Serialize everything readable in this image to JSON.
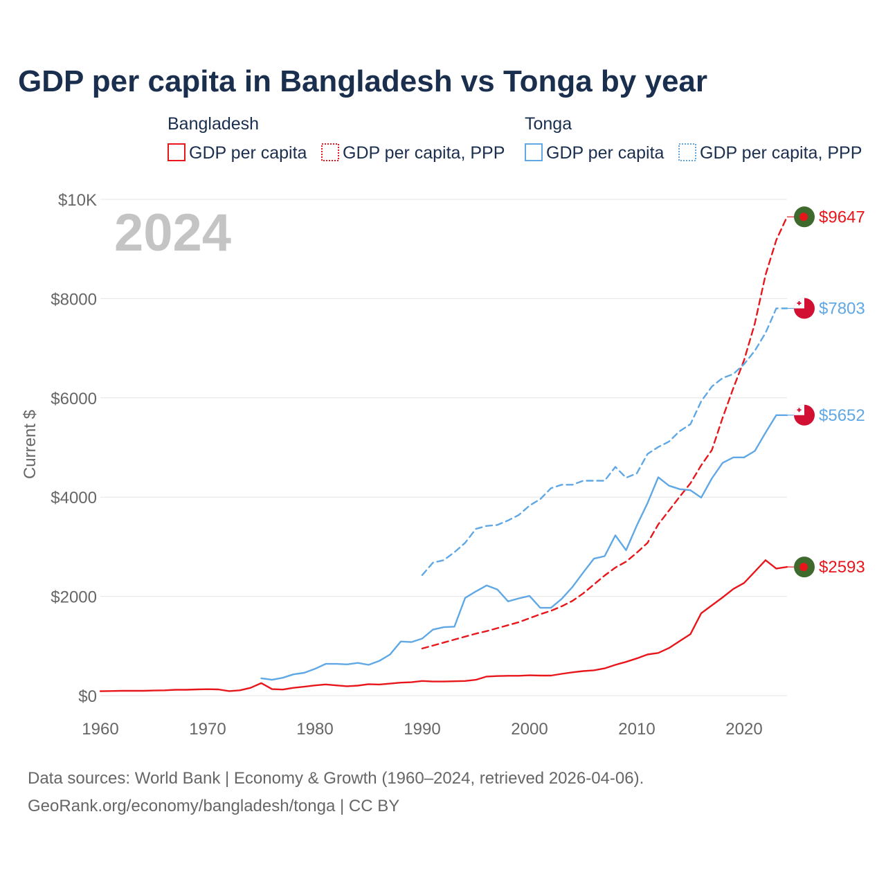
{
  "chart_data": {
    "type": "line",
    "title": "GDP per capita in Bangladesh vs Tonga by year",
    "ylabel": "Current $",
    "xlim": [
      1960,
      2024
    ],
    "ylim": [
      0,
      10000
    ],
    "year_label": "2024",
    "x_ticks": [
      1960,
      1970,
      1980,
      1990,
      2000,
      2010,
      2020
    ],
    "x_tick_labels": [
      "1960",
      "1970",
      "1980",
      "1990",
      "2000",
      "2010",
      "2020"
    ],
    "y_ticks": [
      0,
      2000,
      4000,
      6000,
      8000,
      10000
    ],
    "y_tick_labels": [
      "$0",
      "$2000",
      "$4000",
      "$6000",
      "$8000",
      "$10K"
    ],
    "legend": {
      "groups": [
        {
          "name": "Bangladesh",
          "items": [
            "GDP per capita",
            "GDP per capita, PPP"
          ]
        },
        {
          "name": "Tonga",
          "items": [
            "GDP per capita",
            "GDP per capita, PPP"
          ]
        }
      ]
    },
    "series": [
      {
        "name": "Bangladesh GDP per capita",
        "country": "Bangladesh",
        "color": "#e8161b",
        "dash": "solid",
        "end_label": "$2593",
        "x": [
          1960,
          1961,
          1962,
          1963,
          1964,
          1965,
          1966,
          1967,
          1968,
          1969,
          1970,
          1971,
          1972,
          1973,
          1974,
          1975,
          1976,
          1977,
          1978,
          1979,
          1980,
          1981,
          1982,
          1983,
          1984,
          1985,
          1986,
          1987,
          1988,
          1989,
          1990,
          1991,
          1992,
          1993,
          1994,
          1995,
          1996,
          1997,
          1998,
          1999,
          2000,
          2001,
          2002,
          2003,
          2004,
          2005,
          2006,
          2007,
          2008,
          2009,
          2010,
          2011,
          2012,
          2013,
          2014,
          2015,
          2016,
          2017,
          2018,
          2019,
          2020,
          2021,
          2022,
          2023,
          2024
        ],
        "values": [
          89,
          94,
          98,
          98,
          98,
          103,
          108,
          118,
          118,
          126,
          130,
          126,
          92,
          108,
          158,
          253,
          131,
          123,
          158,
          180,
          206,
          226,
          206,
          190,
          202,
          232,
          224,
          243,
          262,
          271,
          295,
          285,
          285,
          290,
          295,
          320,
          385,
          395,
          400,
          400,
          410,
          405,
          405,
          440,
          470,
          495,
          510,
          550,
          620,
          680,
          750,
          830,
          860,
          960,
          1100,
          1240,
          1660,
          1820,
          1980,
          2150,
          2270,
          2500,
          2730,
          2560,
          2593
        ]
      },
      {
        "name": "Bangladesh GDP per capita, PPP",
        "country": "Bangladesh",
        "color": "#e8161b",
        "dash": "dashed",
        "end_label": "$9647",
        "x": [
          1990,
          1991,
          1992,
          1993,
          1994,
          1995,
          1996,
          1997,
          1998,
          1999,
          2000,
          2001,
          2002,
          2003,
          2004,
          2005,
          2006,
          2007,
          2008,
          2009,
          2010,
          2011,
          2012,
          2013,
          2014,
          2015,
          2016,
          2017,
          2018,
          2019,
          2020,
          2021,
          2022,
          2023,
          2024
        ],
        "values": [
          950,
          1010,
          1070,
          1130,
          1190,
          1250,
          1300,
          1360,
          1420,
          1480,
          1560,
          1640,
          1710,
          1800,
          1910,
          2060,
          2240,
          2420,
          2580,
          2700,
          2880,
          3080,
          3450,
          3730,
          4010,
          4280,
          4640,
          4950,
          5600,
          6200,
          6760,
          7500,
          8480,
          9180,
          9647
        ]
      },
      {
        "name": "Tonga GDP per capita",
        "country": "Tonga",
        "color": "#5fa8e5",
        "dash": "solid",
        "end_label": "$5652",
        "x": [
          1975,
          1976,
          1977,
          1978,
          1979,
          1980,
          1981,
          1982,
          1983,
          1984,
          1985,
          1986,
          1987,
          1988,
          1989,
          1990,
          1991,
          1992,
          1993,
          1994,
          1995,
          1996,
          1997,
          1998,
          1999,
          2000,
          2001,
          2002,
          2003,
          2004,
          2005,
          2006,
          2007,
          2008,
          2009,
          2010,
          2011,
          2012,
          2013,
          2014,
          2015,
          2016,
          2017,
          2018,
          2019,
          2020,
          2021,
          2022,
          2023,
          2024
        ],
        "values": [
          350,
          320,
          360,
          430,
          460,
          540,
          640,
          640,
          630,
          660,
          620,
          700,
          830,
          1090,
          1080,
          1150,
          1330,
          1380,
          1390,
          1970,
          2100,
          2220,
          2140,
          1900,
          1960,
          2010,
          1770,
          1770,
          1950,
          2190,
          2480,
          2760,
          2810,
          3230,
          2930,
          3430,
          3880,
          4400,
          4230,
          4160,
          4140,
          3990,
          4380,
          4690,
          4800,
          4800,
          4930,
          5300,
          5652,
          5652
        ]
      },
      {
        "name": "Tonga GDP per capita, PPP",
        "country": "Tonga",
        "color": "#5fa8e5",
        "dash": "dashed",
        "end_label": "$7803",
        "x": [
          1990,
          1991,
          1992,
          1993,
          1994,
          1995,
          1996,
          1997,
          1998,
          1999,
          2000,
          2001,
          2002,
          2003,
          2004,
          2005,
          2006,
          2007,
          2008,
          2009,
          2010,
          2011,
          2012,
          2013,
          2014,
          2015,
          2016,
          2017,
          2018,
          2019,
          2020,
          2021,
          2022,
          2023,
          2024
        ],
        "values": [
          2430,
          2680,
          2730,
          2890,
          3080,
          3360,
          3420,
          3440,
          3530,
          3640,
          3830,
          3960,
          4180,
          4250,
          4250,
          4330,
          4330,
          4330,
          4610,
          4390,
          4480,
          4870,
          5010,
          5120,
          5330,
          5470,
          5930,
          6230,
          6400,
          6480,
          6680,
          6950,
          7310,
          7803,
          7803
        ]
      }
    ]
  },
  "footer": {
    "line1": "Data sources: World Bank | Economy & Growth (1960–2024, retrieved 2026-04-06).",
    "line2": "GeoRank.org/economy/bangladesh/tonga | CC BY"
  },
  "colors": {
    "title": "#1a2e4d",
    "bangladesh": "#e8161b",
    "tonga": "#5fa8e5",
    "bangladesh_flag_green": "#3e6a2e",
    "tonga_flag_red": "#d21034"
  },
  "icons": {
    "bangladesh": "bangladesh-flag-icon",
    "tonga": "tonga-flag-icon"
  }
}
